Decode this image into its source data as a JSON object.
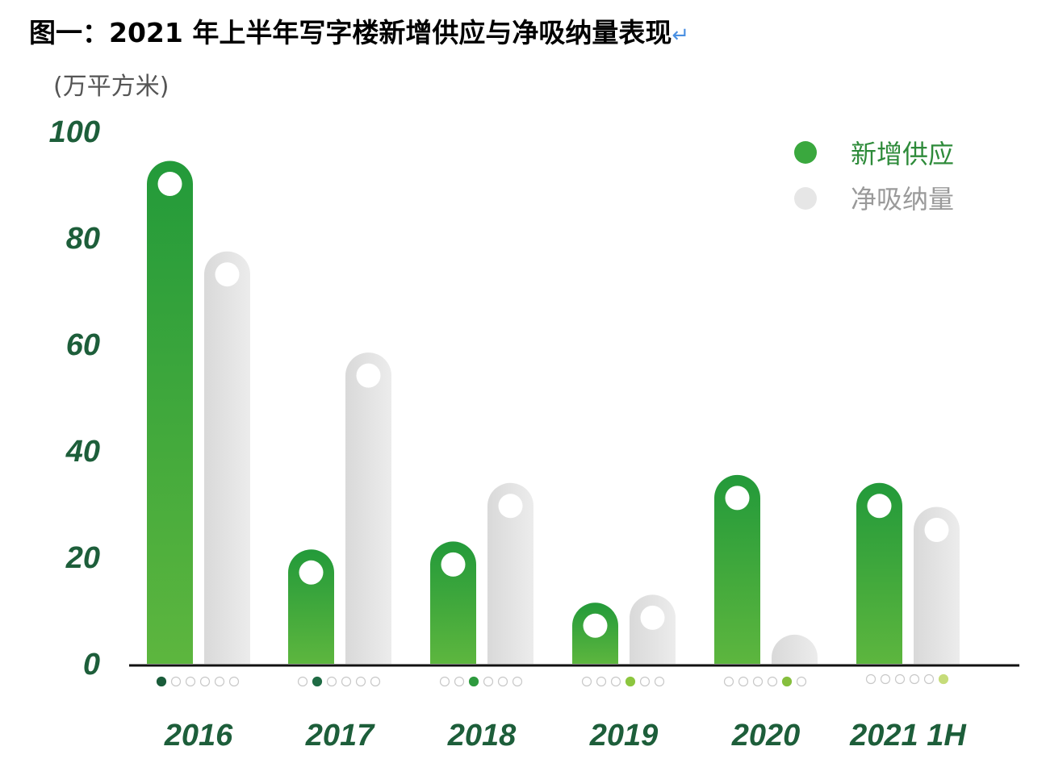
{
  "title": "图一：2021 年上半年写字楼新增供应与净吸纳量表现",
  "return_mark": "↵",
  "chart_data": {
    "type": "bar",
    "title": "图一：2021 年上半年写字楼新增供应与净吸纳量表现",
    "ylabel": "(万平方米)",
    "xlabel": "",
    "ylim": [
      0,
      100
    ],
    "yticks": [
      "0",
      "20",
      "40",
      "60",
      "80",
      "100"
    ],
    "categories": [
      "2016",
      "2017",
      "2018",
      "2019",
      "2020",
      "2021 1H"
    ],
    "series": [
      {
        "name": "新增供应",
        "color": "#3aa83e",
        "values": [
          90,
          17,
          18.5,
          7,
          31,
          29.5
        ]
      },
      {
        "name": "净吸纳量",
        "color": "#e2e2e2",
        "values": [
          73,
          54,
          29.5,
          8.5,
          1,
          25
        ]
      }
    ],
    "legend_position": "top-right",
    "grid": false,
    "indicator_colors": [
      "#1a5c3a",
      "#1f6b44",
      "#2e9a3e",
      "#8cc63f",
      "#86bf3e",
      "#c6dc7a"
    ]
  }
}
